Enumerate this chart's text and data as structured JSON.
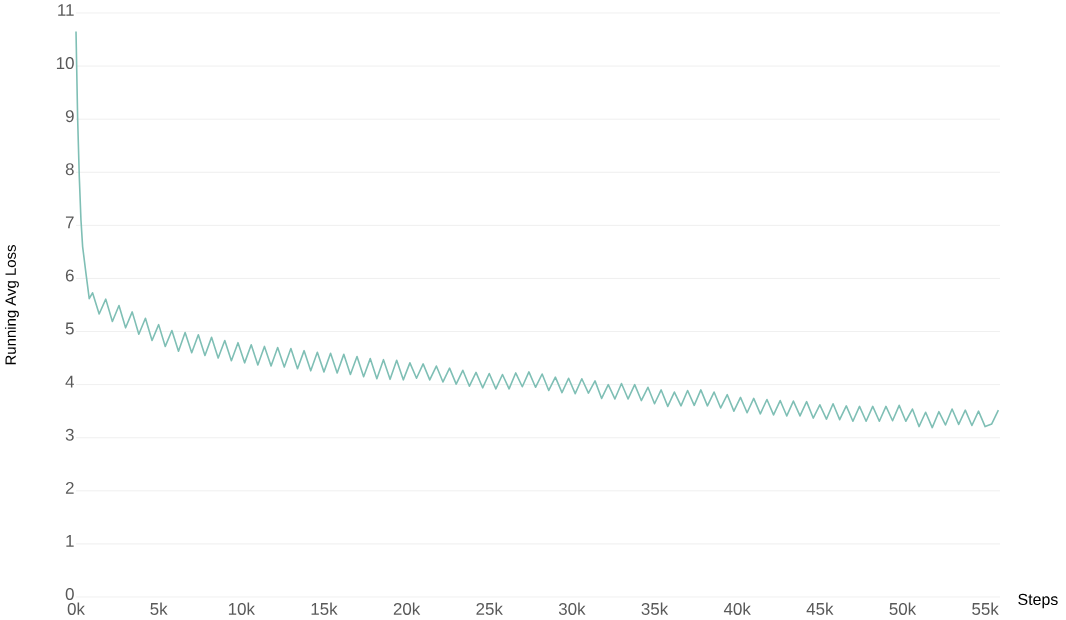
{
  "chart_data": {
    "type": "line",
    "xlabel": "Steps",
    "ylabel": "Running Avg Loss",
    "x": [
      0,
      100,
      200,
      300,
      400,
      600,
      800,
      1000,
      1400,
      1800,
      2200,
      2600,
      3000,
      3400,
      3800,
      4200,
      4600,
      5000,
      5400,
      5800,
      6200,
      6600,
      7000,
      7400,
      7800,
      8200,
      8600,
      9000,
      9400,
      9800,
      10200,
      10600,
      11000,
      11400,
      11800,
      12200,
      12600,
      13000,
      13400,
      13800,
      14200,
      14600,
      15000,
      15400,
      15800,
      16200,
      16600,
      17000,
      17400,
      17800,
      18200,
      18600,
      19000,
      19400,
      19800,
      20200,
      20600,
      21000,
      21400,
      21800,
      22200,
      22600,
      23000,
      23400,
      23800,
      24200,
      24600,
      25000,
      25400,
      25800,
      26200,
      26600,
      27000,
      27400,
      27800,
      28200,
      28600,
      29000,
      29400,
      29800,
      30200,
      30600,
      31000,
      31400,
      31800,
      32200,
      32600,
      33000,
      33400,
      33800,
      34200,
      34600,
      35000,
      35400,
      35800,
      36200,
      36600,
      37000,
      37400,
      37800,
      38200,
      38600,
      39000,
      39400,
      39800,
      40200,
      40600,
      41000,
      41400,
      41800,
      42200,
      42600,
      43000,
      43400,
      43800,
      44200,
      44600,
      45000,
      45400,
      45800,
      46200,
      46600,
      47000,
      47400,
      47800,
      48200,
      48600,
      49000,
      49400,
      49800,
      50200,
      50600,
      51000,
      51400,
      51800,
      52200,
      52600,
      53000,
      53400,
      53800,
      54200,
      54600,
      55000,
      55400,
      55800
    ],
    "series": [
      {
        "color": "#7fbfb5",
        "values": [
          10.65,
          9.0,
          7.9,
          7.1,
          6.6,
          6.1,
          5.62,
          5.73,
          5.33,
          5.61,
          5.19,
          5.49,
          5.07,
          5.37,
          4.95,
          5.25,
          4.83,
          5.13,
          4.72,
          5.02,
          4.63,
          4.98,
          4.6,
          4.94,
          4.55,
          4.89,
          4.5,
          4.83,
          4.45,
          4.79,
          4.41,
          4.75,
          4.37,
          4.72,
          4.35,
          4.7,
          4.33,
          4.68,
          4.3,
          4.64,
          4.26,
          4.61,
          4.24,
          4.59,
          4.22,
          4.57,
          4.19,
          4.53,
          4.15,
          4.49,
          4.11,
          4.47,
          4.1,
          4.46,
          4.09,
          4.41,
          4.12,
          4.39,
          4.09,
          4.35,
          4.05,
          4.31,
          4.01,
          4.27,
          3.97,
          4.23,
          3.94,
          4.21,
          3.92,
          4.19,
          3.92,
          4.22,
          3.96,
          4.24,
          3.95,
          4.2,
          3.89,
          4.14,
          3.85,
          4.12,
          3.83,
          4.11,
          3.84,
          4.07,
          3.74,
          4.0,
          3.73,
          4.02,
          3.73,
          4.0,
          3.7,
          3.95,
          3.64,
          3.9,
          3.59,
          3.86,
          3.6,
          3.89,
          3.61,
          3.9,
          3.6,
          3.86,
          3.56,
          3.81,
          3.5,
          3.76,
          3.47,
          3.74,
          3.45,
          3.72,
          3.43,
          3.7,
          3.41,
          3.69,
          3.41,
          3.68,
          3.37,
          3.62,
          3.35,
          3.64,
          3.34,
          3.6,
          3.31,
          3.59,
          3.31,
          3.59,
          3.31,
          3.59,
          3.32,
          3.61,
          3.31,
          3.54,
          3.21,
          3.48,
          3.19,
          3.49,
          3.24,
          3.54,
          3.25,
          3.52,
          3.23,
          3.5,
          3.21,
          3.26,
          3.52
        ]
      }
    ],
    "xlim": [
      0,
      55900
    ],
    "ylim": [
      0,
      11
    ],
    "xticks": [
      {
        "value": 0,
        "label": "0k"
      },
      {
        "value": 5000,
        "label": "5k"
      },
      {
        "value": 10000,
        "label": "10k"
      },
      {
        "value": 15000,
        "label": "15k"
      },
      {
        "value": 20000,
        "label": "20k"
      },
      {
        "value": 25000,
        "label": "25k"
      },
      {
        "value": 30000,
        "label": "30k"
      },
      {
        "value": 35000,
        "label": "35k"
      },
      {
        "value": 40000,
        "label": "40k"
      },
      {
        "value": 45000,
        "label": "45k"
      },
      {
        "value": 50000,
        "label": "50k"
      },
      {
        "value": 55000,
        "label": "55k"
      }
    ],
    "yticks": [
      0,
      1,
      2,
      3,
      4,
      5,
      6,
      7,
      8,
      9,
      10,
      11
    ],
    "grid": "y",
    "marker": "none",
    "line_style": "solid"
  }
}
